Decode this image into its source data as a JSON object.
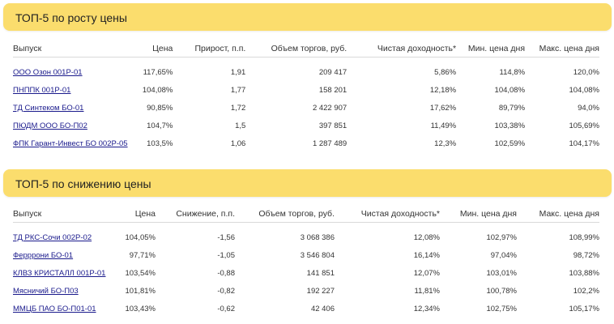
{
  "section1": {
    "title": "ТОП-5 по росту цены",
    "headers": [
      "Выпуск",
      "Цена",
      "Прирост, п.п.",
      "Объем торгов, руб.",
      "Чистая доходность*",
      "Мин. цена дня",
      "Макс. цена дня"
    ],
    "rows": [
      [
        "ООО Озон 001Р-01",
        "117,65%",
        "1,91",
        "209 417",
        "5,86%",
        "114,8%",
        "120,0%"
      ],
      [
        "ПНППК 001Р-01",
        "104,08%",
        "1,77",
        "158 201",
        "12,18%",
        "104,08%",
        "104,08%"
      ],
      [
        "ТД Синтеком БО-01",
        "90,85%",
        "1,72",
        "2 422 907",
        "17,62%",
        "89,79%",
        "94,0%"
      ],
      [
        "ПЮДМ ООО БО-П02",
        "104,7%",
        "1,5",
        "397 851",
        "11,49%",
        "103,38%",
        "105,69%"
      ],
      [
        "ФПК Гарант-Инвест БО 002Р-05",
        "103,5%",
        "1,06",
        "1 287 489",
        "12,3%",
        "102,59%",
        "104,17%"
      ]
    ]
  },
  "section2": {
    "title": "ТОП-5 по снижению цены",
    "headers": [
      "Выпуск",
      "Цена",
      "Снижение, п.п.",
      "Объем торгов, руб.",
      "Чистая доходность*",
      "Мин. цена дня",
      "Макс. цена дня"
    ],
    "rows": [
      [
        "ТД РКС-Сочи 002Р-02",
        "104,05%",
        "-1,56",
        "3 068 386",
        "12,08%",
        "102,97%",
        "108,99%"
      ],
      [
        "Ферррони БО-01",
        "97,71%",
        "-1,05",
        "3 546 804",
        "16,14%",
        "97,04%",
        "98,72%"
      ],
      [
        "КЛВЗ КРИСТАЛЛ 001Р-01",
        "103,54%",
        "-0,88",
        "141 851",
        "12,07%",
        "103,01%",
        "103,88%"
      ],
      [
        "Мясничий БО-П03",
        "101,81%",
        "-0,82",
        "192 227",
        "11,81%",
        "100,78%",
        "102,2%"
      ],
      [
        "ММЦБ ПАО БО-П01-01",
        "103,43%",
        "-0,62",
        "42 406",
        "12,34%",
        "102,75%",
        "105,17%"
      ]
    ]
  }
}
